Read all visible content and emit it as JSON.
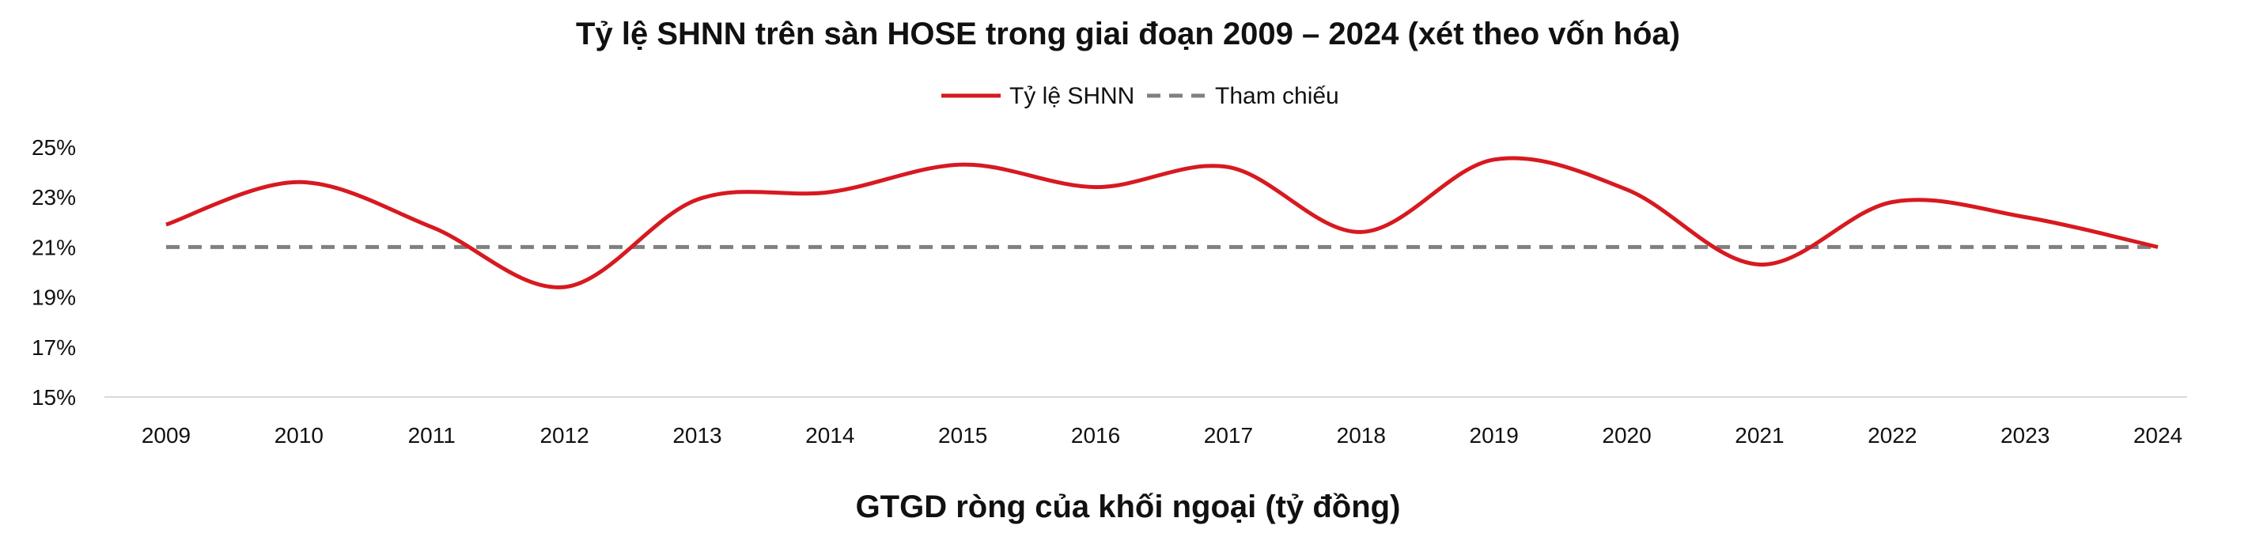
{
  "chart_data": {
    "type": "line",
    "title": "Tỷ lệ SHNN trên sàn HOSE trong giai đoạn 2009 – 2024 (xét theo vốn hóa)",
    "subtitle": "GTGD ròng của khối ngoại (tỷ đồng)",
    "categories": [
      "2009",
      "2010",
      "2011",
      "2012",
      "2013",
      "2014",
      "2015",
      "2016",
      "2017",
      "2018",
      "2019",
      "2020",
      "2021",
      "2022",
      "2023",
      "2024"
    ],
    "series": [
      {
        "name": "Tỷ lệ SHNN",
        "color": "#d71920",
        "style": "solid",
        "values": [
          21.9,
          23.6,
          21.8,
          19.4,
          22.9,
          23.2,
          24.3,
          23.4,
          24.2,
          21.6,
          24.5,
          23.3,
          20.3,
          22.8,
          22.2,
          21.0
        ]
      },
      {
        "name": "Tham chiếu",
        "color": "#808080",
        "style": "dashed",
        "values": [
          21,
          21,
          21,
          21,
          21,
          21,
          21,
          21,
          21,
          21,
          21,
          21,
          21,
          21,
          21,
          21
        ]
      }
    ],
    "y_ticks": [
      "25%",
      "23%",
      "21%",
      "19%",
      "17%",
      "15%"
    ],
    "ylim": [
      15,
      25
    ],
    "legend_position": "top-center",
    "grid": false
  }
}
